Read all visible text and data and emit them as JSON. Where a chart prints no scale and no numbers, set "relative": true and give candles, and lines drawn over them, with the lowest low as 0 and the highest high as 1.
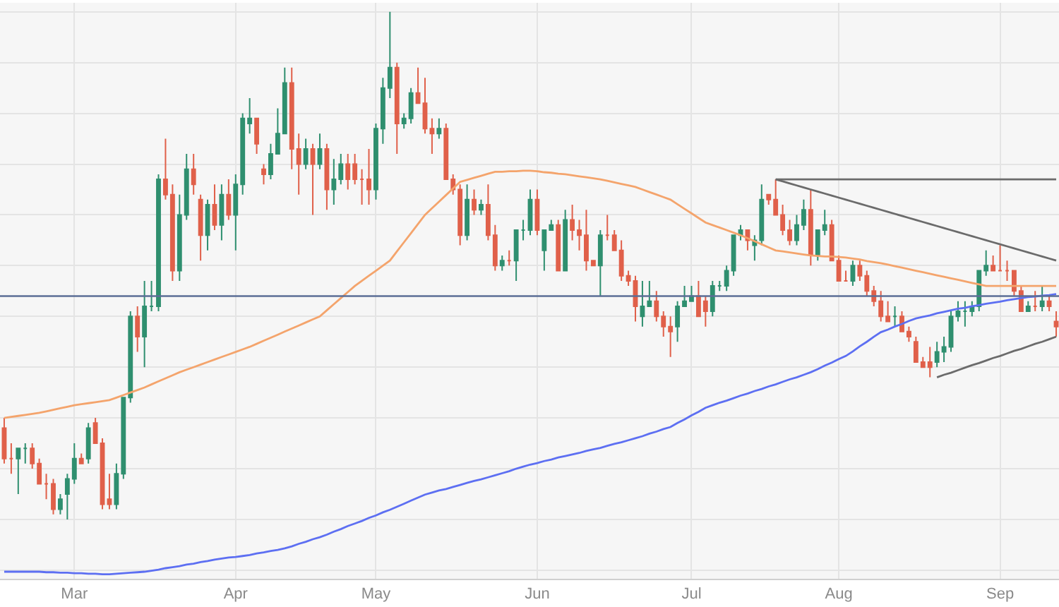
{
  "chart_data": {
    "type": "candlestick",
    "relative": true,
    "grid": true,
    "categories": [
      null,
      null,
      null,
      null,
      null,
      null,
      null,
      null,
      null,
      null,
      "Mar",
      null,
      null,
      null,
      null,
      null,
      null,
      null,
      null,
      null,
      null,
      null,
      null,
      null,
      null,
      null,
      null,
      null,
      null,
      null,
      null,
      null,
      null,
      "Apr",
      null,
      null,
      null,
      null,
      null,
      null,
      null,
      null,
      null,
      null,
      null,
      null,
      null,
      null,
      null,
      null,
      null,
      null,
      null,
      "May",
      null,
      null,
      null,
      null,
      null,
      null,
      null,
      null,
      null,
      null,
      null,
      null,
      null,
      null,
      null,
      null,
      null,
      null,
      null,
      null,
      null,
      null,
      "Jun",
      null,
      null,
      null,
      null,
      null,
      null,
      null,
      null,
      null,
      null,
      null,
      null,
      null,
      null,
      null,
      null,
      null,
      null,
      null,
      null,
      null,
      "Jul",
      null,
      null,
      null,
      null,
      null,
      null,
      null,
      null,
      null,
      null,
      null,
      null,
      null,
      null,
      null,
      null,
      null,
      null,
      null,
      null,
      "Aug",
      null,
      null,
      null,
      null,
      null,
      null,
      null,
      null,
      null,
      null,
      null,
      null,
      null,
      null,
      null,
      null,
      null,
      null,
      null,
      null,
      null,
      null,
      "Sep",
      null,
      null,
      null,
      null,
      null,
      null,
      null,
      null
    ],
    "ohlc": [
      [
        0.18,
        0.2,
        0.11,
        0.12
      ],
      [
        0.12,
        0.15,
        0.09,
        0.12
      ],
      [
        0.12,
        0.14,
        0.05,
        0.14
      ],
      [
        0.14,
        0.15,
        0.11,
        0.14
      ],
      [
        0.14,
        0.15,
        0.1,
        0.11
      ],
      [
        0.11,
        0.12,
        0.07,
        0.07
      ],
      [
        0.07,
        0.09,
        0.04,
        0.07
      ],
      [
        0.07,
        0.08,
        0.01,
        0.02
      ],
      [
        0.02,
        0.05,
        0.01,
        0.04
      ],
      [
        0.05,
        0.09,
        0,
        0.08
      ],
      [
        0.08,
        0.15,
        0.07,
        0.12
      ],
      [
        0.12,
        0.13,
        0.11,
        0.11
      ],
      [
        0.12,
        0.19,
        0.11,
        0.18
      ],
      [
        0.19,
        0.2,
        0.15,
        0.15
      ],
      [
        0.15,
        0.16,
        0.02,
        0.03
      ],
      [
        0.04,
        0.09,
        0.02,
        0.03
      ],
      [
        0.03,
        0.11,
        0.02,
        0.09
      ],
      [
        0.09,
        0.24,
        0.08,
        0.24
      ],
      [
        0.24,
        0.41,
        0.23,
        0.4
      ],
      [
        0.4,
        0.42,
        0.33,
        0.36
      ],
      [
        0.36,
        0.47,
        0.3,
        0.42
      ],
      [
        0.42,
        0.47,
        0.41,
        0.42
      ],
      [
        0.42,
        0.68,
        0.41,
        0.67
      ],
      [
        0.67,
        0.75,
        0.63,
        0.64
      ],
      [
        0.64,
        0.66,
        0.47,
        0.49
      ],
      [
        0.49,
        0.64,
        0.47,
        0.6
      ],
      [
        0.6,
        0.72,
        0.59,
        0.69
      ],
      [
        0.69,
        0.72,
        0.64,
        0.66
      ],
      [
        0.63,
        0.64,
        0.51,
        0.56
      ],
      [
        0.56,
        0.63,
        0.53,
        0.62
      ],
      [
        0.62,
        0.66,
        0.57,
        0.58
      ],
      [
        0.58,
        0.66,
        0.55,
        0.64
      ],
      [
        0.64,
        0.67,
        0.59,
        0.6
      ],
      [
        0.6,
        0.68,
        0.53,
        0.66
      ],
      [
        0.66,
        0.8,
        0.64,
        0.79
      ],
      [
        0.78,
        0.83,
        0.76,
        0.79
      ],
      [
        0.79,
        0.79,
        0.72,
        0.74
      ],
      [
        0.69,
        0.7,
        0.66,
        0.68
      ],
      [
        0.68,
        0.74,
        0.67,
        0.72
      ],
      [
        0.72,
        0.81,
        0.72,
        0.76
      ],
      [
        0.76,
        0.89,
        0.76,
        0.86
      ],
      [
        0.86,
        0.89,
        0.69,
        0.73
      ],
      [
        0.73,
        0.76,
        0.64,
        0.7
      ],
      [
        0.7,
        0.75,
        0.69,
        0.73
      ],
      [
        0.73,
        0.74,
        0.6,
        0.7
      ],
      [
        0.7,
        0.76,
        0.69,
        0.73
      ],
      [
        0.73,
        0.74,
        0.61,
        0.65
      ],
      [
        0.65,
        0.71,
        0.62,
        0.67
      ],
      [
        0.67,
        0.72,
        0.66,
        0.7
      ],
      [
        0.7,
        0.72,
        0.65,
        0.67
      ],
      [
        0.7,
        0.72,
        0.66,
        0.67
      ],
      [
        0.67,
        0.69,
        0.62,
        0.67
      ],
      [
        0.67,
        0.73,
        0.62,
        0.65
      ],
      [
        0.65,
        0.78,
        0.63,
        0.77
      ],
      [
        0.77,
        0.87,
        0.74,
        0.85
      ],
      [
        0.85,
        1.0,
        0.83,
        0.89
      ],
      [
        0.89,
        0.9,
        0.72,
        0.78
      ],
      [
        0.78,
        0.8,
        0.77,
        0.79
      ],
      [
        0.79,
        0.85,
        0.78,
        0.84
      ],
      [
        0.84,
        0.89,
        0.82,
        0.82
      ],
      [
        0.82,
        0.87,
        0.76,
        0.77
      ],
      [
        0.77,
        0.79,
        0.72,
        0.76
      ],
      [
        0.76,
        0.79,
        0.75,
        0.77
      ],
      [
        0.77,
        0.78,
        0.67,
        0.67
      ],
      [
        0.67,
        0.68,
        0.64,
        0.65
      ],
      [
        0.65,
        0.66,
        0.54,
        0.56
      ],
      [
        0.56,
        0.66,
        0.55,
        0.63
      ],
      [
        0.63,
        0.65,
        0.6,
        0.61
      ],
      [
        0.61,
        0.63,
        0.6,
        0.62
      ],
      [
        0.62,
        0.66,
        0.55,
        0.56
      ],
      [
        0.56,
        0.58,
        0.49,
        0.5
      ],
      [
        0.5,
        0.52,
        0.49,
        0.51
      ],
      [
        0.51,
        0.53,
        0.5,
        0.51
      ],
      [
        0.51,
        0.57,
        0.47,
        0.57
      ],
      [
        0.57,
        0.59,
        0.55,
        0.57
      ],
      [
        0.57,
        0.65,
        0.56,
        0.63
      ],
      [
        0.63,
        0.65,
        0.56,
        0.57
      ],
      [
        0.53,
        0.57,
        0.49,
        0.57
      ],
      [
        0.57,
        0.59,
        0.57,
        0.58
      ],
      [
        0.58,
        0.59,
        0.49,
        0.49
      ],
      [
        0.49,
        0.61,
        0.49,
        0.59
      ],
      [
        0.59,
        0.62,
        0.55,
        0.57
      ],
      [
        0.57,
        0.59,
        0.53,
        0.56
      ],
      [
        0.56,
        0.61,
        0.49,
        0.51
      ],
      [
        0.51,
        0.51,
        0.5,
        0.5
      ],
      [
        0.5,
        0.57,
        0.44,
        0.56
      ],
      [
        0.56,
        0.6,
        0.55,
        0.56
      ],
      [
        0.56,
        0.57,
        0.53,
        0.53
      ],
      [
        0.53,
        0.55,
        0.47,
        0.48
      ],
      [
        0.48,
        0.49,
        0.46,
        0.47
      ],
      [
        0.47,
        0.48,
        0.39,
        0.42
      ],
      [
        0.4,
        0.47,
        0.38,
        0.42
      ],
      [
        0.42,
        0.47,
        0.42,
        0.43
      ],
      [
        0.43,
        0.45,
        0.39,
        0.4
      ],
      [
        0.4,
        0.41,
        0.36,
        0.38
      ],
      [
        0.38,
        0.4,
        0.32,
        0.37
      ],
      [
        0.38,
        0.43,
        0.35,
        0.42
      ],
      [
        0.42,
        0.46,
        0.42,
        0.43
      ],
      [
        0.43,
        0.46,
        0.43,
        0.44
      ],
      [
        0.44,
        0.47,
        0.4,
        0.4
      ],
      [
        0.43,
        0.44,
        0.38,
        0.41
      ],
      [
        0.41,
        0.47,
        0.4,
        0.46
      ],
      [
        0.46,
        0.47,
        0.45,
        0.46
      ],
      [
        0.46,
        0.5,
        0.45,
        0.49
      ],
      [
        0.49,
        0.56,
        0.48,
        0.56
      ],
      [
        0.56,
        0.58,
        0.55,
        0.57
      ],
      [
        0.57,
        0.57,
        0.53,
        0.55
      ],
      [
        0.54,
        0.56,
        0.51,
        0.55
      ],
      [
        0.55,
        0.66,
        0.54,
        0.63
      ],
      [
        0.64,
        0.64,
        0.62,
        0.63
      ],
      [
        0.63,
        0.67,
        0.6,
        0.6
      ],
      [
        0.6,
        0.62,
        0.56,
        0.57
      ],
      [
        0.57,
        0.59,
        0.54,
        0.55
      ],
      [
        0.55,
        0.6,
        0.54,
        0.58
      ],
      [
        0.58,
        0.63,
        0.57,
        0.61
      ],
      [
        0.61,
        0.65,
        0.5,
        0.52
      ],
      [
        0.52,
        0.57,
        0.51,
        0.57
      ],
      [
        0.57,
        0.61,
        0.56,
        0.58
      ],
      [
        0.58,
        0.59,
        0.51,
        0.51
      ],
      [
        0.51,
        0.52,
        0.47,
        0.47
      ],
      [
        0.47,
        0.49,
        0.47,
        0.47
      ],
      [
        0.47,
        0.51,
        0.46,
        0.5
      ],
      [
        0.5,
        0.51,
        0.47,
        0.48
      ],
      [
        0.48,
        0.49,
        0.44,
        0.45
      ],
      [
        0.45,
        0.46,
        0.42,
        0.43
      ],
      [
        0.43,
        0.45,
        0.39,
        0.4
      ],
      [
        0.4,
        0.43,
        0.39,
        0.39
      ],
      [
        0.4,
        0.42,
        0.38,
        0.4
      ],
      [
        0.4,
        0.41,
        0.37,
        0.37
      ],
      [
        0.37,
        0.38,
        0.35,
        0.36
      ],
      [
        0.35,
        0.36,
        0.31,
        0.31
      ],
      [
        0.31,
        0.32,
        0.3,
        0.3
      ],
      [
        0.31,
        0.34,
        0.28,
        0.3
      ],
      [
        0.31,
        0.35,
        0.3,
        0.33
      ],
      [
        0.33,
        0.36,
        0.31,
        0.34
      ],
      [
        0.34,
        0.41,
        0.33,
        0.4
      ],
      [
        0.4,
        0.43,
        0.39,
        0.41
      ],
      [
        0.41,
        0.43,
        0.38,
        0.41
      ],
      [
        0.41,
        0.43,
        0.4,
        0.42
      ],
      [
        0.42,
        0.49,
        0.41,
        0.49
      ],
      [
        0.49,
        0.53,
        0.48,
        0.5
      ],
      [
        0.5,
        0.52,
        0.49,
        0.49
      ],
      [
        0.49,
        0.54,
        0.49,
        0.49
      ],
      [
        0.49,
        0.51,
        0.47,
        0.49
      ],
      [
        0.49,
        0.49,
        0.44,
        0.45
      ],
      [
        0.45,
        0.46,
        0.41,
        0.41
      ],
      [
        0.41,
        0.43,
        0.41,
        0.42
      ],
      [
        0.42,
        0.45,
        0.41,
        0.42
      ],
      [
        0.42,
        0.46,
        0.41,
        0.43
      ],
      [
        0.43,
        0.44,
        0.41,
        0.42
      ],
      [
        0.39,
        0.41,
        0.36,
        0.38
      ]
    ],
    "colors": [
      "#e0604a",
      "#e0604a",
      "#2f8f6f",
      "#2f8f6f",
      "#e0604a",
      "#e0604a",
      "#e0604a",
      "#e0604a",
      "#2f8f6f",
      "#2f8f6f",
      "#2f8f6f",
      "#e0604a",
      "#2f8f6f",
      "#e0604a",
      "#e0604a",
      "#e0604a",
      "#2f8f6f",
      "#2f8f6f",
      "#2f8f6f",
      "#e0604a",
      "#2f8f6f",
      "#2f8f6f",
      "#2f8f6f",
      "#e0604a",
      "#e0604a",
      "#2f8f6f",
      "#2f8f6f",
      "#e0604a",
      "#e0604a",
      "#2f8f6f",
      "#e0604a",
      "#2f8f6f",
      "#e0604a",
      "#2f8f6f",
      "#2f8f6f",
      "#2f8f6f",
      "#e0604a",
      "#e0604a",
      "#2f8f6f",
      "#2f8f6f",
      "#2f8f6f",
      "#e0604a",
      "#e0604a",
      "#2f8f6f",
      "#e0604a",
      "#2f8f6f",
      "#e0604a",
      "#2f8f6f",
      "#2f8f6f",
      "#e0604a",
      "#e0604a",
      "#e0604a",
      "#e0604a",
      "#2f8f6f",
      "#2f8f6f",
      "#2f8f6f",
      "#e0604a",
      "#2f8f6f",
      "#2f8f6f",
      "#e0604a",
      "#e0604a",
      "#e0604a",
      "#2f8f6f",
      "#e0604a",
      "#e0604a",
      "#e0604a",
      "#2f8f6f",
      "#e0604a",
      "#2f8f6f",
      "#e0604a",
      "#e0604a",
      "#2f8f6f",
      "#e0604a",
      "#2f8f6f",
      "#2f8f6f",
      "#2f8f6f",
      "#e0604a",
      "#2f8f6f",
      "#2f8f6f",
      "#e0604a",
      "#2f8f6f",
      "#e0604a",
      "#e0604a",
      "#e0604a",
      "#e0604a",
      "#2f8f6f",
      "#e0604a",
      "#e0604a",
      "#e0604a",
      "#e0604a",
      "#e0604a",
      "#2f8f6f",
      "#2f8f6f",
      "#e0604a",
      "#e0604a",
      "#e0604a",
      "#2f8f6f",
      "#2f8f6f",
      "#2f8f6f",
      "#e0604a",
      "#e0604a",
      "#2f8f6f",
      "#2f8f6f",
      "#2f8f6f",
      "#2f8f6f",
      "#2f8f6f",
      "#e0604a",
      "#2f8f6f",
      "#2f8f6f",
      "#e0604a",
      "#e0604a",
      "#e0604a",
      "#e0604a",
      "#2f8f6f",
      "#2f8f6f",
      "#e0604a",
      "#2f8f6f",
      "#2f8f6f",
      "#e0604a",
      "#e0604a",
      "#e0604a",
      "#2f8f6f",
      "#e0604a",
      "#e0604a",
      "#e0604a",
      "#e0604a",
      "#e0604a",
      "#2f8f6f",
      "#e0604a",
      "#e0604a",
      "#e0604a",
      "#e0604a",
      "#e0604a",
      "#2f8f6f",
      "#2f8f6f",
      "#2f8f6f",
      "#2f8f6f",
      "#2f8f6f",
      "#2f8f6f",
      "#2f8f6f",
      "#2f8f6f",
      "#e0604a",
      "#e0604a",
      "#e0604a",
      "#e0604a",
      "#e0604a",
      "#2f8f6f",
      "#e0604a",
      "#2f8f6f",
      "#e0604a",
      "#e0604a"
    ],
    "series": [
      {
        "type": "line",
        "color": "#f4a46c",
        "values": [
          0.2,
          0.202,
          0.204,
          0.206,
          0.208,
          0.21,
          0.213,
          0.216,
          0.219,
          0.222,
          0.225,
          0.227,
          0.229,
          0.231,
          0.233,
          0.235,
          0.24,
          0.245,
          0.25,
          0.255,
          0.26,
          0.266,
          0.272,
          0.278,
          0.284,
          0.29,
          0.295,
          0.3,
          0.305,
          0.31,
          0.315,
          0.32,
          0.325,
          0.33,
          0.335,
          0.34,
          0.346,
          0.352,
          0.358,
          0.364,
          0.37,
          0.376,
          0.382,
          0.388,
          0.394,
          0.4,
          0.412,
          0.424,
          0.436,
          0.448,
          0.46,
          0.47,
          0.48,
          0.49,
          0.5,
          0.51,
          0.528,
          0.546,
          0.564,
          0.582,
          0.6,
          0.613,
          0.626,
          0.639,
          0.652,
          0.665,
          0.669,
          0.673,
          0.677,
          0.681,
          0.685,
          0.685,
          0.686,
          0.686,
          0.687,
          0.687,
          0.686,
          0.684,
          0.683,
          0.681,
          0.68,
          0.678,
          0.676,
          0.674,
          0.672,
          0.67,
          0.667,
          0.664,
          0.661,
          0.658,
          0.655,
          0.65,
          0.645,
          0.64,
          0.635,
          0.63,
          0.621,
          0.612,
          0.603,
          0.594,
          0.585,
          0.58,
          0.575,
          0.57,
          0.565,
          0.56,
          0.554,
          0.548,
          0.542,
          0.536,
          0.53,
          0.528,
          0.526,
          0.524,
          0.522,
          0.52,
          0.519,
          0.518,
          0.518,
          0.517,
          0.516,
          0.514,
          0.512,
          0.509,
          0.507,
          0.505,
          0.502,
          0.499,
          0.496,
          0.493,
          0.49,
          0.487,
          0.484,
          0.481,
          0.478,
          0.475,
          0.472,
          0.469,
          0.466,
          0.463,
          0.46,
          0.46,
          0.46,
          0.46,
          0.46,
          0.46,
          0.46,
          0.46,
          0.46,
          0.46,
          0.46
        ]
      },
      {
        "type": "line",
        "color": "#5d6ff2",
        "values": [
          -0.103,
          -0.103,
          -0.103,
          -0.103,
          -0.103,
          -0.103,
          -0.104,
          -0.104,
          -0.105,
          -0.105,
          -0.106,
          -0.106,
          -0.107,
          -0.107,
          -0.108,
          -0.108,
          -0.107,
          -0.106,
          -0.105,
          -0.104,
          -0.103,
          -0.101,
          -0.099,
          -0.096,
          -0.094,
          -0.092,
          -0.089,
          -0.087,
          -0.084,
          -0.082,
          -0.079,
          -0.077,
          -0.075,
          -0.074,
          -0.072,
          -0.07,
          -0.067,
          -0.065,
          -0.062,
          -0.06,
          -0.057,
          -0.053,
          -0.048,
          -0.044,
          -0.039,
          -0.035,
          -0.03,
          -0.024,
          -0.019,
          -0.013,
          -0.008,
          -0.003,
          0.003,
          0.008,
          0.014,
          0.019,
          0.025,
          0.031,
          0.037,
          0.043,
          0.049,
          0.053,
          0.057,
          0.06,
          0.064,
          0.068,
          0.072,
          0.076,
          0.079,
          0.083,
          0.087,
          0.091,
          0.095,
          0.1,
          0.104,
          0.108,
          0.111,
          0.115,
          0.118,
          0.122,
          0.125,
          0.128,
          0.131,
          0.135,
          0.138,
          0.141,
          0.145,
          0.149,
          0.152,
          0.156,
          0.16,
          0.164,
          0.169,
          0.173,
          0.178,
          0.182,
          0.19,
          0.197,
          0.205,
          0.212,
          0.22,
          0.225,
          0.23,
          0.234,
          0.239,
          0.244,
          0.248,
          0.253,
          0.257,
          0.262,
          0.266,
          0.271,
          0.276,
          0.28,
          0.285,
          0.29,
          0.296,
          0.303,
          0.309,
          0.316,
          0.322,
          0.331,
          0.341,
          0.35,
          0.36,
          0.369,
          0.374,
          0.38,
          0.385,
          0.391,
          0.396,
          0.399,
          0.402,
          0.406,
          0.409,
          0.412,
          0.415,
          0.417,
          0.42,
          0.422,
          0.425,
          0.427,
          0.429,
          0.432,
          0.434,
          0.436,
          0.438,
          0.439,
          0.441,
          0.442,
          0.444
        ]
      },
      {
        "type": "line",
        "color": "#6b6b6b",
        "values": [
          null,
          null,
          null,
          null,
          null,
          null,
          null,
          null,
          null,
          null,
          null,
          null,
          null,
          null,
          null,
          null,
          null,
          null,
          null,
          null,
          null,
          null,
          null,
          null,
          null,
          null,
          null,
          null,
          null,
          null,
          null,
          null,
          null,
          null,
          null,
          null,
          null,
          null,
          null,
          null,
          null,
          null,
          null,
          null,
          null,
          null,
          null,
          null,
          null,
          null,
          null,
          null,
          null,
          null,
          null,
          null,
          null,
          null,
          null,
          null,
          null,
          null,
          null,
          null,
          null,
          null,
          null,
          null,
          null,
          null,
          null,
          null,
          null,
          null,
          null,
          null,
          null,
          null,
          null,
          null,
          null,
          null,
          null,
          null,
          null,
          null,
          null,
          null,
          null,
          null,
          null,
          null,
          null,
          null,
          null,
          null,
          null,
          null,
          null,
          null,
          null,
          null,
          null,
          null,
          null,
          null,
          null,
          null,
          null,
          null,
          0.67,
          0.67,
          0.67,
          0.67,
          0.67,
          0.67,
          0.67,
          0.67,
          0.67,
          0.67,
          0.67,
          0.67,
          0.67,
          0.67,
          0.67,
          0.67,
          0.67,
          0.67,
          0.67,
          0.67,
          0.67,
          0.67,
          0.67,
          0.67,
          0.67,
          0.67,
          0.67,
          0.67,
          0.67,
          0.67,
          0.67,
          0.67,
          0.67,
          0.67,
          0.67,
          0.67,
          0.67,
          0.67,
          0.67,
          0.67,
          0.67
        ]
      },
      {
        "type": "line",
        "color": "#6b6b6b",
        "values": [
          null,
          null,
          null,
          null,
          null,
          null,
          null,
          null,
          null,
          null,
          null,
          null,
          null,
          null,
          null,
          null,
          null,
          null,
          null,
          null,
          null,
          null,
          null,
          null,
          null,
          null,
          null,
          null,
          null,
          null,
          null,
          null,
          null,
          null,
          null,
          null,
          null,
          null,
          null,
          null,
          null,
          null,
          null,
          null,
          null,
          null,
          null,
          null,
          null,
          null,
          null,
          null,
          null,
          null,
          null,
          null,
          null,
          null,
          null,
          null,
          null,
          null,
          null,
          null,
          null,
          null,
          null,
          null,
          null,
          null,
          null,
          null,
          null,
          null,
          null,
          null,
          null,
          null,
          null,
          null,
          null,
          null,
          null,
          null,
          null,
          null,
          null,
          null,
          null,
          null,
          null,
          null,
          null,
          null,
          null,
          null,
          null,
          null,
          null,
          null,
          null,
          null,
          null,
          null,
          null,
          null,
          null,
          null,
          null,
          null,
          0.67,
          0.666,
          0.662,
          0.658,
          0.654,
          0.65,
          0.646,
          0.642,
          0.638,
          0.634,
          0.63,
          0.626,
          0.622,
          0.618,
          0.614,
          0.61,
          0.606,
          0.602,
          0.598,
          0.594,
          0.59,
          0.586,
          0.582,
          0.578,
          0.574,
          0.57,
          0.566,
          0.562,
          0.558,
          0.554,
          0.55,
          0.546,
          0.542,
          0.538,
          0.534,
          0.53,
          0.526,
          0.522,
          0.518,
          0.514,
          0.51
        ]
      },
      {
        "type": "line",
        "color": "#6b6b6b",
        "values": [
          null,
          null,
          null,
          null,
          null,
          null,
          null,
          null,
          null,
          null,
          null,
          null,
          null,
          null,
          null,
          null,
          null,
          null,
          null,
          null,
          null,
          null,
          null,
          null,
          null,
          null,
          null,
          null,
          null,
          null,
          null,
          null,
          null,
          null,
          null,
          null,
          null,
          null,
          null,
          null,
          null,
          null,
          null,
          null,
          null,
          null,
          null,
          null,
          null,
          null,
          null,
          null,
          null,
          null,
          null,
          null,
          null,
          null,
          null,
          null,
          null,
          null,
          null,
          null,
          null,
          null,
          null,
          null,
          null,
          null,
          null,
          null,
          null,
          null,
          null,
          null,
          null,
          null,
          null,
          null,
          null,
          null,
          null,
          null,
          null,
          null,
          null,
          null,
          null,
          null,
          null,
          null,
          null,
          null,
          null,
          null,
          null,
          null,
          null,
          null,
          null,
          null,
          null,
          null,
          null,
          null,
          null,
          null,
          null,
          null,
          null,
          null,
          null,
          null,
          null,
          null,
          null,
          null,
          null,
          null,
          null,
          null,
          null,
          null,
          null,
          null,
          null,
          null,
          null,
          null,
          null,
          null,
          null,
          0.28,
          0.285,
          0.289,
          0.294,
          0.299,
          0.304,
          0.308,
          0.313,
          0.318,
          0.322,
          0.327,
          0.332,
          0.336,
          0.341,
          0.346,
          0.35,
          0.355,
          0.36
        ]
      }
    ],
    "ref_lines": [
      {
        "axis": "y",
        "value": 0.44,
        "color": "#5b6e96"
      }
    ]
  }
}
